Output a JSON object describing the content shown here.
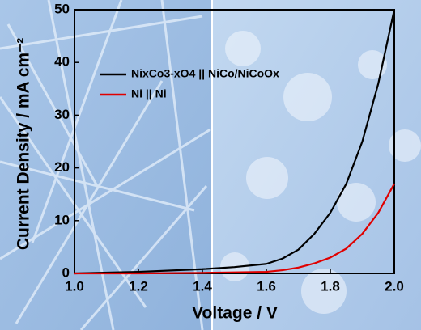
{
  "chart_data": {
    "type": "line",
    "x_label": "Voltage / V",
    "y_label": "Current Density / mA cm⁻²",
    "x": [
      1.0,
      1.2,
      1.4,
      1.5,
      1.6,
      1.65,
      1.7,
      1.75,
      1.8,
      1.85,
      1.9,
      1.95,
      2.0
    ],
    "series": [
      {
        "name": "NixCo3-xO4 || NiCo/NiCoOx",
        "color": "#000000",
        "values": [
          0,
          0.3,
          0.8,
          1.2,
          1.8,
          2.8,
          4.5,
          7.5,
          11.5,
          17,
          25,
          36,
          50
        ]
      },
      {
        "name": "Ni || Ni",
        "color": "#e00000",
        "values": [
          0,
          0,
          0.1,
          0.2,
          0.3,
          0.6,
          1.1,
          1.9,
          3.0,
          4.7,
          7.5,
          11.5,
          17
        ]
      }
    ],
    "xlim": [
      1.0,
      2.0
    ],
    "xticks": [
      {
        "value": 1.0,
        "label": "1.0"
      },
      1.2,
      1.4,
      1.6,
      1.8,
      {
        "value": 2.0,
        "label": "2.0"
      }
    ],
    "ylim": [
      0,
      50
    ],
    "yticks": [
      0,
      10,
      20,
      30,
      40,
      50
    ],
    "legend": "upper-left"
  }
}
